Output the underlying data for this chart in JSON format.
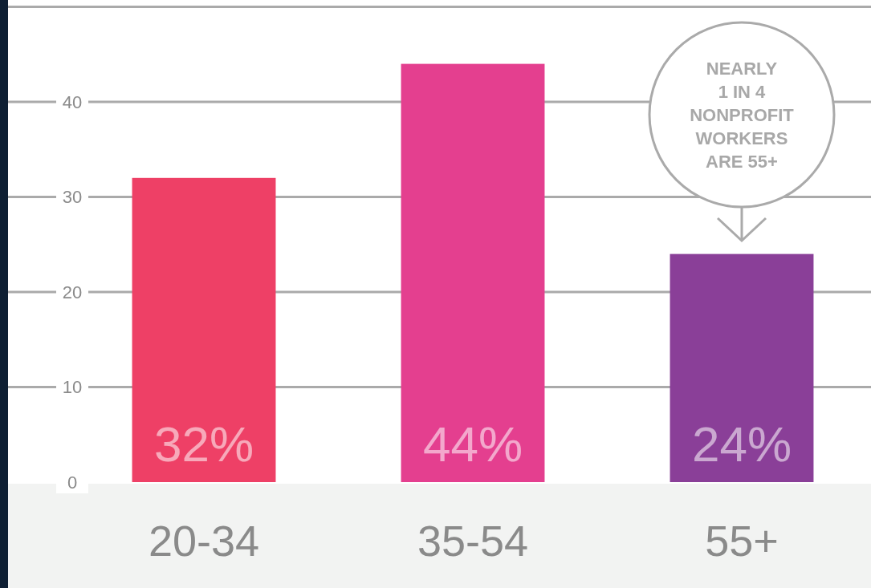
{
  "chart_data": {
    "type": "bar",
    "categories": [
      "20-34",
      "35-54",
      "55+"
    ],
    "values": [
      32,
      44,
      24
    ],
    "colors": [
      "#ee4066",
      "#e43f8f",
      "#8a3f98"
    ],
    "value_labels": [
      "32%",
      "44%",
      "24%"
    ],
    "ylim": [
      0,
      50
    ],
    "yticks": [
      0,
      10,
      20,
      30,
      40,
      {
        "value": 50,
        "label": null
      }
    ],
    "grid": "y",
    "annotations": [
      "NEARLY\n1 IN 4\nNONPROFIT\nWORKERS\nARE 55+"
    ]
  }
}
